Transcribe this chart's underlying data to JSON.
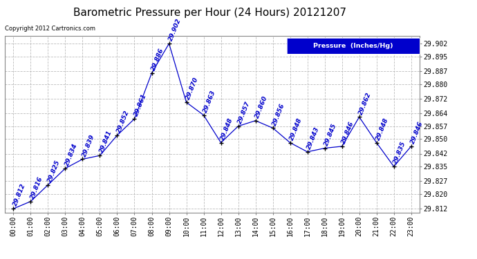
{
  "title": "Barometric Pressure per Hour (24 Hours) 20121207",
  "copyright_text": "Copyright 2012 Cartronics.com",
  "legend_text": "Pressure  (Inches/Hg)",
  "x_labels": [
    "00:00",
    "01:00",
    "02:00",
    "03:00",
    "04:00",
    "05:00",
    "06:00",
    "07:00",
    "08:00",
    "09:00",
    "10:00",
    "11:00",
    "12:00",
    "13:00",
    "14:00",
    "15:00",
    "16:00",
    "17:00",
    "18:00",
    "19:00",
    "20:00",
    "21:00",
    "22:00",
    "23:00"
  ],
  "pressure_values": [
    29.812,
    29.816,
    29.825,
    29.834,
    29.839,
    29.841,
    29.852,
    29.861,
    29.886,
    29.902,
    29.87,
    29.863,
    29.848,
    29.857,
    29.86,
    29.856,
    29.848,
    29.843,
    29.845,
    29.846,
    29.862,
    29.848,
    29.835,
    29.846
  ],
  "line_color": "#0000CC",
  "marker_color": "#000000",
  "background_color": "#ffffff",
  "grid_color": "#bbbbbb",
  "title_color": "#000000",
  "ylim_min": 29.81,
  "ylim_max": 29.906,
  "yticks": [
    29.812,
    29.82,
    29.827,
    29.835,
    29.842,
    29.85,
    29.857,
    29.864,
    29.872,
    29.88,
    29.887,
    29.895,
    29.902
  ],
  "title_fontsize": 11,
  "tick_fontsize": 7,
  "annot_fontsize": 6.5
}
